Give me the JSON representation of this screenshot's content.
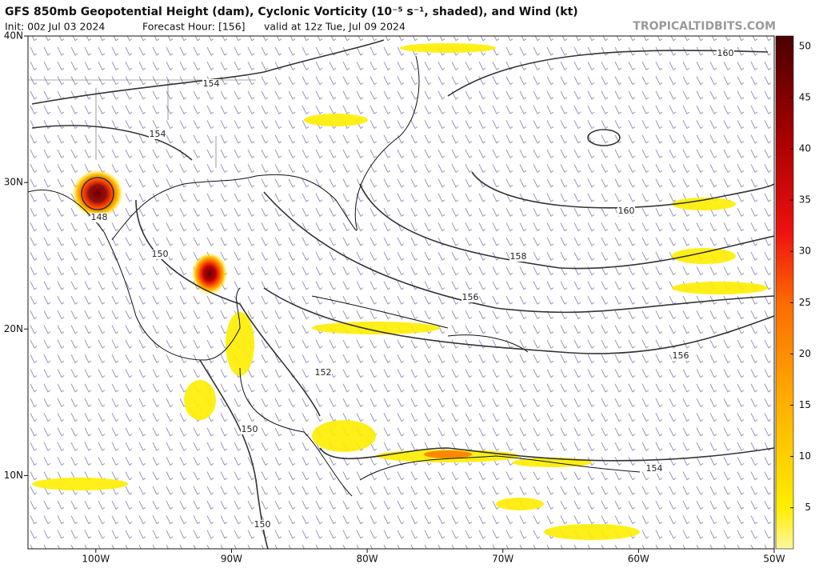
{
  "header": {
    "title": "GFS 850mb Geopotential Height (dam), Cyclonic Vorticity (10⁻⁵ s⁻¹, shaded), and Wind (kt)",
    "init": "Init: 00z Jul 03 2024",
    "forecast_hour": "Forecast Hour: [156]",
    "valid": "valid at 12z Tue, Jul 09 2024",
    "source": "TROPICALTIDBITS.COM"
  },
  "map": {
    "lon_range": [
      -105,
      -50
    ],
    "lat_range": [
      5,
      40
    ],
    "lon_ticks": [
      {
        "value": -100,
        "label": "100W"
      },
      {
        "value": -90,
        "label": "90W"
      },
      {
        "value": -80,
        "label": "80W"
      },
      {
        "value": -70,
        "label": "70W"
      },
      {
        "value": -60,
        "label": "60W"
      },
      {
        "value": -50,
        "label": "50W"
      }
    ],
    "lat_ticks": [
      {
        "value": 40,
        "label": "40N"
      },
      {
        "value": 30,
        "label": "30N"
      },
      {
        "value": 20,
        "label": "20N"
      },
      {
        "value": 10,
        "label": "10N"
      }
    ],
    "contour_labels": [
      160,
      154,
      154,
      148,
      150,
      160,
      158,
      156,
      156,
      152,
      150,
      154,
      150
    ]
  },
  "colorbar": {
    "range": [
      1,
      51
    ],
    "ticks": [
      5,
      10,
      15,
      20,
      25,
      30,
      35,
      40,
      45,
      50
    ]
  }
}
